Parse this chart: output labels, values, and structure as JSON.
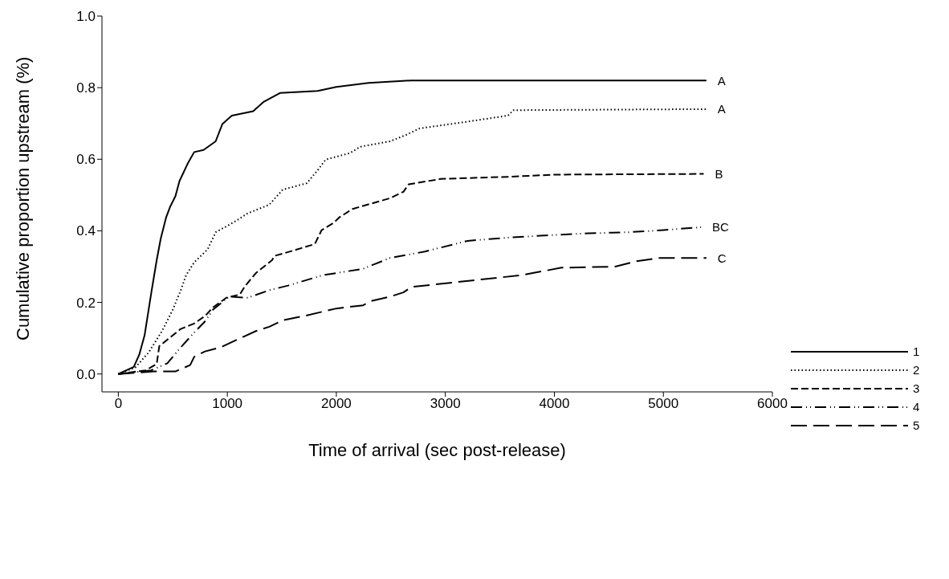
{
  "chart_data": {
    "type": "line",
    "xlabel": "Time of arrival (sec post-release)",
    "ylabel": "Cumulative proportion upstream (%)",
    "xlim": [
      -150,
      6000
    ],
    "xticks": [
      0,
      1000,
      2000,
      3000,
      4000,
      5000,
      6000
    ],
    "ylim": [
      -0.05,
      1.0
    ],
    "yticks": [
      {
        "value": 0,
        "label": "0.0"
      },
      {
        "value": 0.2,
        "label": "0.2"
      },
      {
        "value": 0.4,
        "label": "0.4"
      },
      {
        "value": 0.6,
        "label": "0.6"
      },
      {
        "value": 0.8,
        "label": "0.8"
      },
      {
        "value": 1.0,
        "label": "1.0"
      }
    ],
    "grid": false,
    "legend": "right",
    "marker": "none",
    "series": [
      {
        "name": "1",
        "color": "#000000",
        "line_style": "solid",
        "x": [
          0,
          142,
          192,
          241,
          303,
          352,
          389,
          438,
          475,
          524,
          561,
          635,
          696,
          782,
          893,
          954,
          1041,
          1237,
          1336,
          1483,
          1828,
          2000,
          2295,
          2686,
          5395
        ],
        "values": [
          0,
          0.02,
          0.054,
          0.108,
          0.228,
          0.318,
          0.378,
          0.437,
          0.467,
          0.497,
          0.539,
          0.587,
          0.62,
          0.626,
          0.65,
          0.698,
          0.722,
          0.734,
          0.761,
          0.785,
          0.791,
          0.802,
          0.813,
          0.82,
          0.82
        ]
      },
      {
        "name": "2",
        "color": "#000000",
        "line_style": "dotted",
        "x": [
          0,
          155,
          278,
          401,
          500,
          573,
          622,
          696,
          819,
          893,
          1065,
          1188,
          1385,
          1508,
          1729,
          1828,
          1902,
          2123,
          2221,
          2492,
          2640,
          2762,
          3181,
          3575,
          3624,
          5395
        ],
        "values": [
          0,
          0.018,
          0.06,
          0.12,
          0.18,
          0.234,
          0.276,
          0.312,
          0.348,
          0.396,
          0.425,
          0.449,
          0.473,
          0.515,
          0.533,
          0.569,
          0.599,
          0.617,
          0.635,
          0.65,
          0.668,
          0.686,
          0.704,
          0.722,
          0.737,
          0.74
        ]
      },
      {
        "name": "3",
        "color": "#000000",
        "line_style": "dashed",
        "x": [
          0,
          250,
          352,
          376,
          500,
          573,
          696,
          795,
          869,
          991,
          1114,
          1164,
          1262,
          1336,
          1410,
          1434,
          1607,
          1803,
          1865,
          1975,
          2025,
          2148,
          2320,
          2492,
          2615,
          2664,
          2959,
          3575,
          4017,
          5370
        ],
        "values": [
          0,
          0.01,
          0.028,
          0.078,
          0.108,
          0.126,
          0.141,
          0.162,
          0.186,
          0.213,
          0.222,
          0.246,
          0.282,
          0.3,
          0.318,
          0.33,
          0.345,
          0.363,
          0.402,
          0.422,
          0.437,
          0.461,
          0.476,
          0.491,
          0.509,
          0.53,
          0.545,
          0.551,
          0.557,
          0.559
        ]
      },
      {
        "name": "4",
        "color": "#000000",
        "line_style": "dashdot",
        "x": [
          0,
          300,
          450,
          549,
          672,
          795,
          869,
          1016,
          1188,
          1385,
          1557,
          1877,
          2246,
          2492,
          2812,
          3205,
          3575,
          3968,
          4312,
          4681,
          5001,
          5345
        ],
        "values": [
          0,
          0.01,
          0.03,
          0.066,
          0.108,
          0.147,
          0.18,
          0.216,
          0.213,
          0.234,
          0.247,
          0.276,
          0.294,
          0.324,
          0.342,
          0.372,
          0.381,
          0.388,
          0.393,
          0.396,
          0.402,
          0.41
        ]
      },
      {
        "name": "5",
        "color": "#000000",
        "line_style": "longdash",
        "x": [
          0,
          327,
          524,
          659,
          696,
          795,
          942,
          1090,
          1262,
          1385,
          1508,
          1705,
          2000,
          2246,
          2320,
          2492,
          2615,
          2689,
          3328,
          3697,
          4066,
          4558,
          4755,
          4952,
          5395
        ],
        "values": [
          0,
          0.007,
          0.007,
          0.025,
          0.048,
          0.063,
          0.075,
          0.096,
          0.12,
          0.132,
          0.15,
          0.162,
          0.183,
          0.192,
          0.204,
          0.216,
          0.228,
          0.243,
          0.264,
          0.276,
          0.297,
          0.3,
          0.315,
          0.324,
          0.324
        ]
      }
    ],
    "annotations": [
      {
        "text": "A",
        "x": 5395,
        "y": 0.82
      },
      {
        "text": "A",
        "x": 5395,
        "y": 0.74
      },
      {
        "text": "B",
        "x": 5370,
        "y": 0.559
      },
      {
        "text": "BC",
        "x": 5345,
        "y": 0.41
      },
      {
        "text": "C",
        "x": 5395,
        "y": 0.324
      }
    ]
  }
}
